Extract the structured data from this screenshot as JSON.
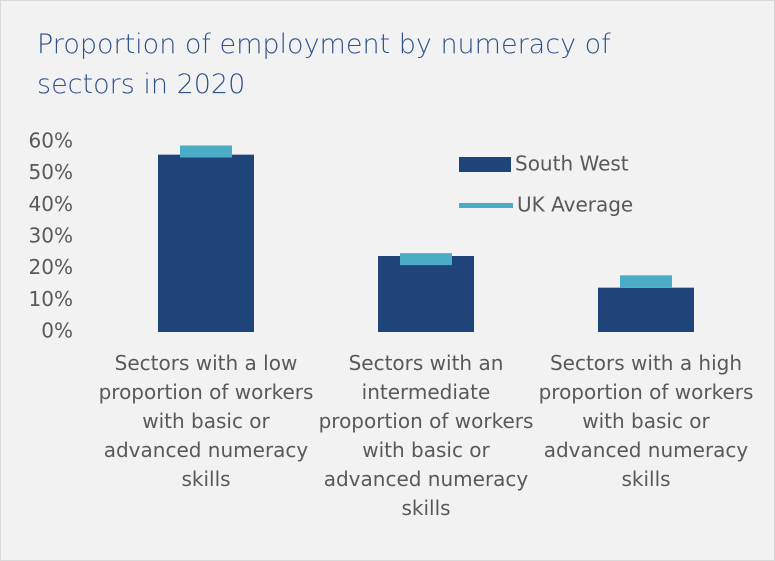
{
  "chart_data": {
    "type": "bar",
    "title": "Proportion of employment by numeracy of sectors in 2020",
    "categories": [
      "Sectors with a low proportion of workers with basic or advanced numeracy skills",
      "Sectors with an intermediate proportion of workers with basic or advanced numeracy skills",
      "Sectors with a high proportion of workers with basic or advanced numeracy skills"
    ],
    "series": [
      {
        "name": "South West",
        "color": "#1f4479",
        "values": [
          56,
          24,
          14
        ]
      },
      {
        "name": "UK Average",
        "color": "#4bacc6",
        "values": [
          57,
          23,
          16
        ]
      }
    ],
    "ylim": [
      0,
      60
    ],
    "yticks": [
      {
        "value": 0,
        "label": "0%"
      },
      {
        "value": 10,
        "label": "10%"
      },
      {
        "value": 20,
        "label": "20%"
      },
      {
        "value": 30,
        "label": "30%"
      },
      {
        "value": 40,
        "label": "40%"
      },
      {
        "value": 50,
        "label": "50%"
      },
      {
        "value": 60,
        "label": "60%"
      }
    ],
    "grid": false,
    "legend": "top-right"
  }
}
